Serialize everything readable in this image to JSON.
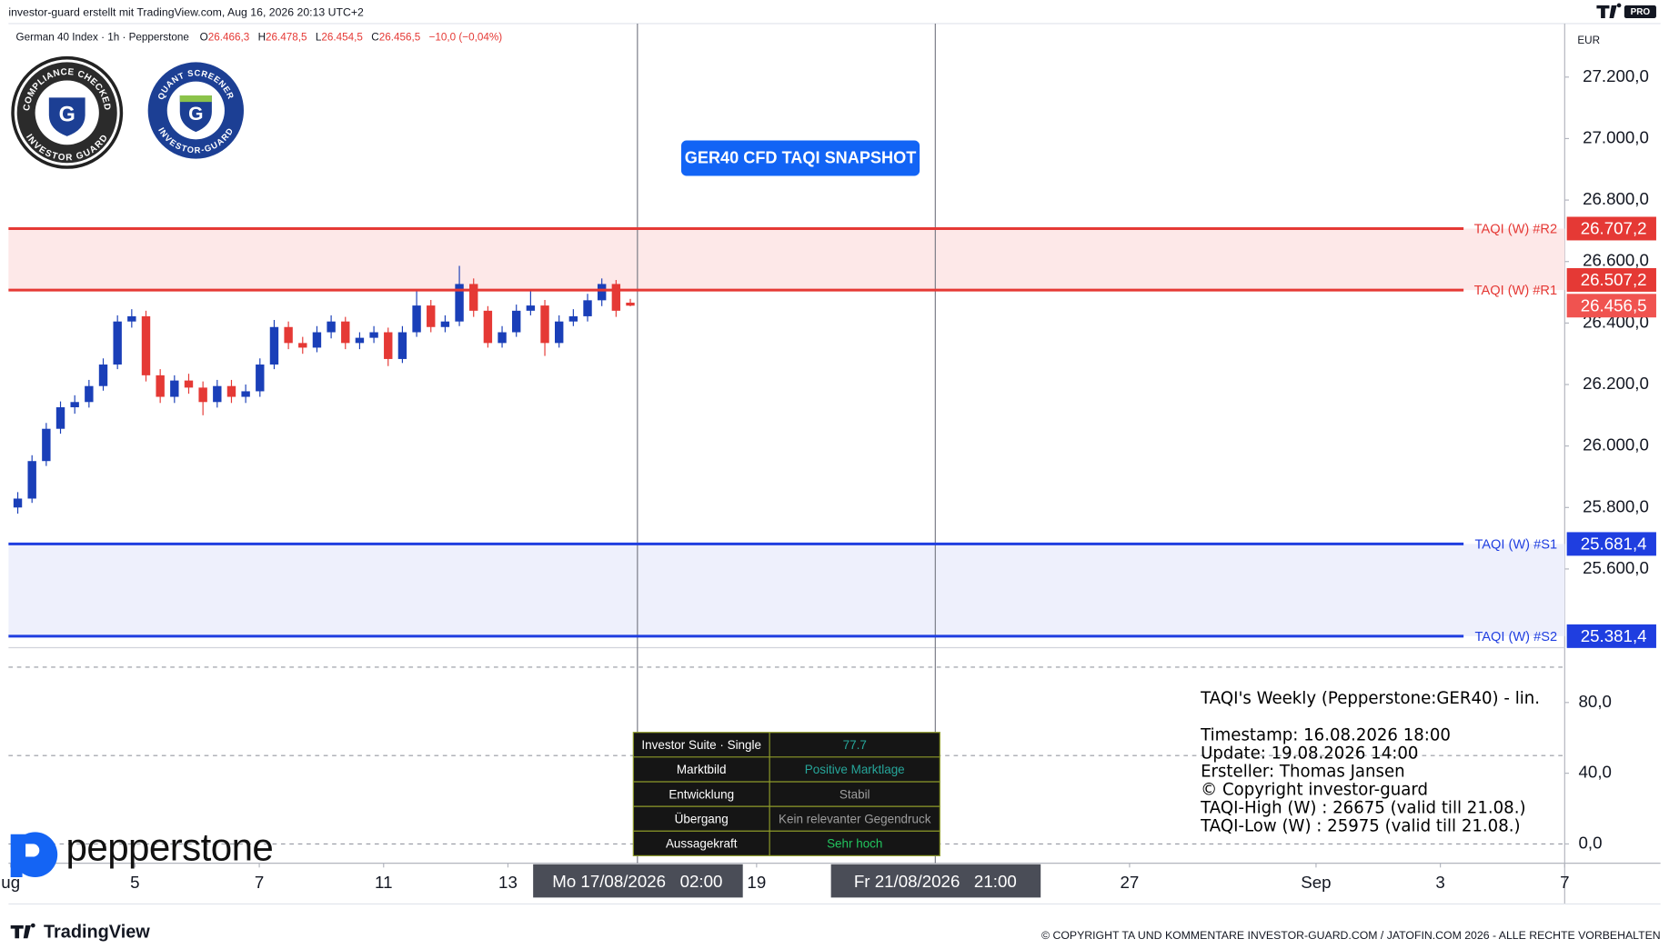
{
  "header": {
    "caption": "investor-guard erstellt mit TradingView.com, Aug 16, 2026 20:13 UTC+2",
    "symbol": "German 40 Index · 1h · Pepperstone",
    "ohlc": [
      [
        "O",
        "26.466,3"
      ],
      [
        "H",
        "26.478,5"
      ],
      [
        "L",
        "26.454,5"
      ],
      [
        "C",
        "26.456,5"
      ]
    ],
    "change": "−10,0 (−0,04%)",
    "currency": "EUR",
    "tv_badge": "PRO"
  },
  "badges": [
    {
      "top": "COMPLIANCE CHECKED",
      "bottom": "INVESTOR GUARD",
      "letter": "G"
    },
    {
      "top": "QUANT SCREENER",
      "bottom": "INVESTOR-GUARD",
      "letter": "G"
    }
  ],
  "button": "GER40 CFD TAQI SNAPSHOT",
  "chart_data": {
    "type": "candlestick",
    "up_color": "#1a3fb8",
    "down_color": "#e53935",
    "open": [
      25800,
      25829,
      25951,
      26056,
      26126,
      26143,
      26195,
      26265,
      26405,
      26422,
      26230,
      26160,
      26213,
      26190,
      26143,
      26195,
      26160,
      26178,
      26265,
      26387,
      26335,
      26320,
      26370,
      26405,
      26335,
      26352,
      26370,
      26283,
      26370,
      26457,
      26387,
      26405,
      26527,
      26440,
      26335,
      26370,
      26440,
      26457,
      26335,
      26405,
      26422,
      26474,
      26527,
      26466.3
    ],
    "high": [
      25850,
      25970,
      26075,
      26145,
      26165,
      26215,
      26285,
      26425,
      26445,
      26440,
      26250,
      26230,
      26235,
      26210,
      26215,
      26215,
      26200,
      26285,
      26410,
      26405,
      26355,
      26390,
      26425,
      26420,
      26370,
      26390,
      26385,
      26390,
      26510,
      26475,
      26425,
      26586,
      26545,
      26455,
      26390,
      26460,
      26510,
      26475,
      26425,
      26445,
      26495,
      26545,
      26540,
      26478.5
    ],
    "low": [
      25780,
      25815,
      25935,
      26040,
      26105,
      26125,
      26180,
      26250,
      26385,
      26210,
      26140,
      26140,
      26170,
      26100,
      26125,
      26140,
      26140,
      26160,
      26250,
      26315,
      26300,
      26305,
      26350,
      26315,
      26315,
      26335,
      26260,
      26270,
      26355,
      26370,
      26370,
      26390,
      26420,
      26320,
      26320,
      26355,
      26425,
      26293,
      26320,
      26390,
      26405,
      26455,
      26420,
      26454.5
    ],
    "close": [
      25829,
      25951,
      26056,
      26126,
      26143,
      26195,
      26265,
      26405,
      26422,
      26230,
      26160,
      26213,
      26190,
      26143,
      26195,
      26160,
      26178,
      26265,
      26387,
      26335,
      26320,
      26370,
      26405,
      26335,
      26352,
      26370,
      26283,
      26370,
      26457,
      26387,
      26405,
      26527,
      26440,
      26335,
      26370,
      26440,
      26457,
      26335,
      26405,
      26422,
      26474,
      26527,
      26440,
      26456.5
    ],
    "last_label": "26.456,5",
    "last_color": "#f05350",
    "ylim": [
      25344,
      27374
    ],
    "yticks": [
      {
        "value": 25600,
        "label": "25.600,0"
      },
      {
        "value": 25800,
        "label": "25.800,0"
      },
      {
        "value": 26000,
        "label": "26.000,0"
      },
      {
        "value": 26200,
        "label": "26.200,0"
      },
      {
        "value": 26400,
        "label": "26.400,0"
      },
      {
        "value": 26600,
        "label": "26.600,0"
      },
      {
        "value": 26800,
        "label": "26.800,0"
      },
      {
        "value": 27000,
        "label": "27.000,0"
      },
      {
        "value": 27200,
        "label": "27.200,0"
      }
    ],
    "xlim": [
      "2026-08-03",
      "2026-09-07"
    ],
    "xticks": [
      {
        "value": "2026-08-03",
        "label": "ug"
      },
      {
        "value": "2026-08-05",
        "label": "5"
      },
      {
        "value": "2026-08-07",
        "label": "7"
      },
      {
        "value": "2026-08-11",
        "label": "11"
      },
      {
        "value": "2026-08-13",
        "label": "13"
      },
      {
        "value": "2026-08-19",
        "label": "19"
      },
      {
        "value": "2026-08-27",
        "label": "27"
      },
      {
        "value": "2026-09-01",
        "label": "Sep"
      },
      {
        "value": "2026-09-03",
        "label": "3"
      },
      {
        "value": "2026-09-07",
        "label": "7"
      }
    ],
    "markers": [
      {
        "value": "2026-08-17 02:00",
        "label": "Mo 17/08/2026   02:00"
      },
      {
        "value": "2026-08-21 21:00",
        "label": "Fr 21/08/2026   21:00"
      }
    ],
    "levels": [
      {
        "name": "TAQI (W) #R2",
        "value": 26707.2,
        "value_label": "26.707,2",
        "color": "#e53935",
        "band": "#fde8e8"
      },
      {
        "name": "TAQI (W) #R1",
        "value": 26507.2,
        "value_label": "26.507,2",
        "color": "#e53935"
      },
      {
        "name": "TAQI (W) #S1",
        "value": 25681.4,
        "value_label": "25.681,4",
        "color": "#1f3ee0",
        "band": "#eef0fc"
      },
      {
        "name": "TAQI (W) #S2",
        "value": 25381.4,
        "value_label": "25.381,4",
        "color": "#1f3ee0"
      }
    ],
    "oscillator": {
      "ylim": [
        -10.9,
        111
      ],
      "yticks": [
        {
          "value": 0,
          "label": "0,0"
        },
        {
          "value": 40,
          "label": "40,0"
        },
        {
          "value": 80,
          "label": "80,0"
        }
      ],
      "hlines": [
        100,
        50,
        0
      ]
    }
  },
  "table": {
    "rows": [
      [
        "Investor Suite · Single",
        "77.7"
      ],
      [
        "Marktbild",
        "Positive Marktlage"
      ],
      [
        "Entwicklung",
        "Stabil"
      ],
      [
        "Übergang",
        "Kein relevanter Gegendruck"
      ],
      [
        "Aussagekraft",
        "Sehr hoch"
      ]
    ],
    "value_colors": [
      "#26a69a",
      "#26a69a",
      "#9e9e9e",
      "#9e9e9e",
      "#22c55e"
    ]
  },
  "info": {
    "title": "TAQI's Weekly (Pepperstone:GER40) - lin.",
    "lines": [
      "Timestamp: 16.08.2026 18:00",
      "Update: 19.08.2026 14:00",
      "Ersteller: Thomas Jansen",
      "© Copyright investor-guard",
      "TAQI-High (W) : 26675 (valid till 21.08.)",
      "TAQI-Low (W) : 25975 (valid till 21.08.)"
    ]
  },
  "footer": {
    "brand": "pepperstone",
    "tradingview": "TradingView",
    "copyright": "© COPYRIGHT TA UND KOMMENTARE INVESTOR-GUARD.COM / JATOFIN.COM 2026 - ALLE RECHTE VORBEHALTEN"
  }
}
